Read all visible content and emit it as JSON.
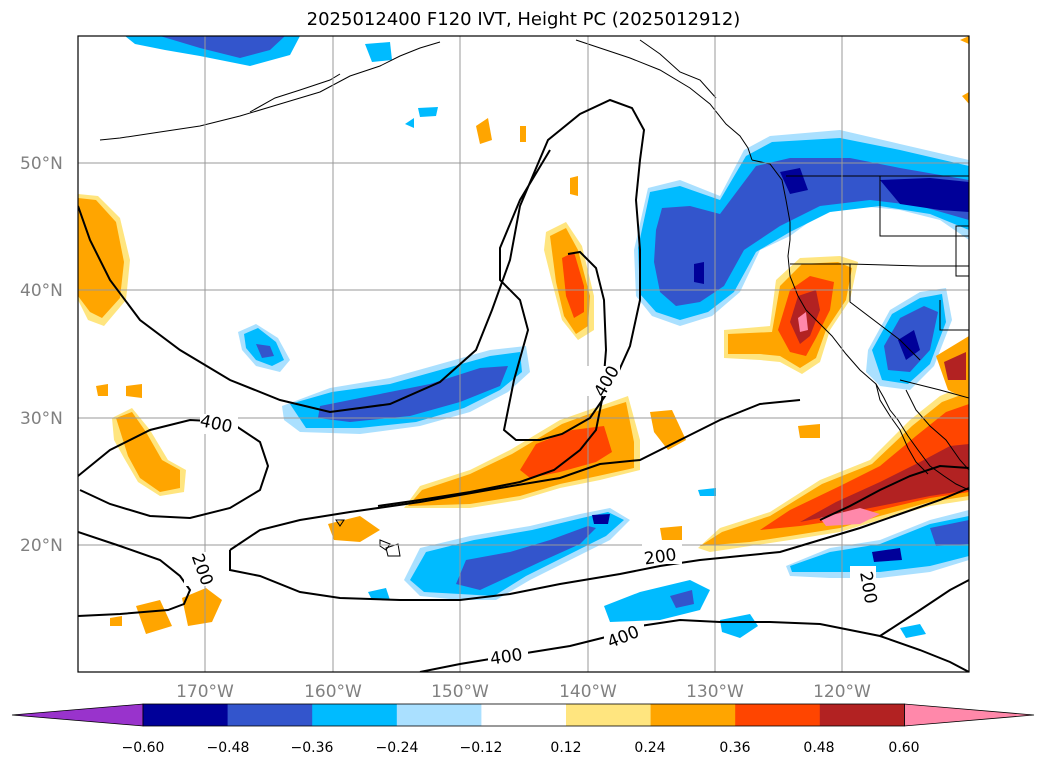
{
  "title": "2025012400 F120 IVT, Height PC (2025012912)",
  "lat_labels": [
    "50°N",
    "40°N",
    "30°N",
    "20°N"
  ],
  "lon_labels": [
    "170°W",
    "160°W",
    "150°W",
    "140°W",
    "130°W",
    "120°W"
  ],
  "contour_labels": [
    "400",
    "400",
    "200",
    "200",
    "200",
    "400",
    "400"
  ],
  "colorbar": {
    "tick_labels": [
      "−0.60",
      "−0.48",
      "−0.36",
      "−0.24",
      "−0.12",
      "0.12",
      "0.24",
      "0.36",
      "0.48",
      "0.60"
    ],
    "colors": [
      "#9933cc",
      "#000099",
      "#3355cc",
      "#00bbff",
      "#aae0ff",
      "#ffffff",
      "#ffe57f",
      "#ffa500",
      "#ff4500",
      "#b22222",
      "#ff88aa"
    ]
  },
  "colors": {
    "neg_strong": "#000099",
    "neg_mid": "#3355cc",
    "neg_light": "#00bbff",
    "neg_faint": "#aae0ff",
    "pos_faint": "#ffe57f",
    "pos_light": "#ffa500",
    "pos_mid": "#ff4500",
    "pos_strong": "#b22222",
    "pos_max": "#ff88aa",
    "grid": "#999999",
    "contour": "#000000"
  }
}
